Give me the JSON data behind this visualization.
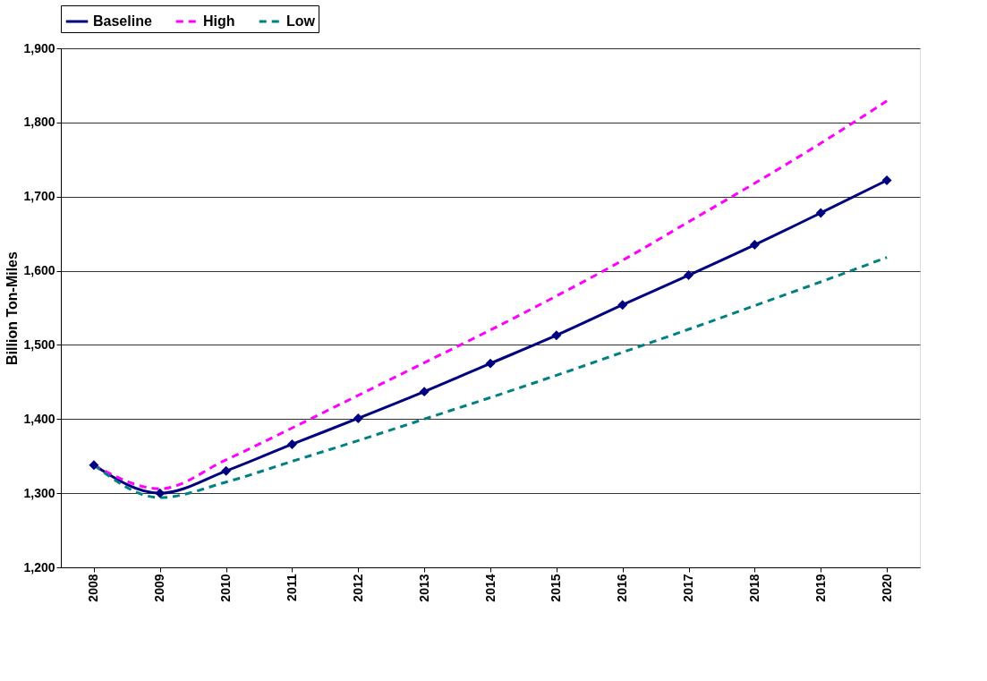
{
  "chart_data": {
    "type": "line",
    "ylabel": "Billion Ton-Miles",
    "categories": [
      "2008",
      "2009",
      "2010",
      "2011",
      "2012",
      "2013",
      "2014",
      "2015",
      "2016",
      "2017",
      "2018",
      "2019",
      "2020"
    ],
    "series": [
      {
        "name": "Baseline",
        "color": "#000080",
        "marker": "diamond",
        "line_style": "solid",
        "values": [
          1338,
          1300,
          1330,
          1366,
          1401,
          1437,
          1475,
          1513,
          1554,
          1594,
          1635,
          1678,
          1722
        ]
      },
      {
        "name": "High",
        "color": "#ff00ff",
        "marker": "none",
        "line_style": "dashed",
        "values": [
          1338,
          1306,
          1345,
          1388,
          1432,
          1476,
          1520,
          1566,
          1614,
          1666,
          1718,
          1772,
          1829
        ]
      },
      {
        "name": "Low",
        "color": "#008080",
        "marker": "none",
        "line_style": "dashed",
        "values": [
          1338,
          1294,
          1315,
          1343,
          1371,
          1400,
          1429,
          1459,
          1490,
          1521,
          1553,
          1585,
          1618
        ]
      }
    ],
    "ylim": [
      1200,
      1900
    ],
    "yticks": [
      {
        "value": 1200,
        "label": "1,200"
      },
      {
        "value": 1300,
        "label": "1,300"
      },
      {
        "value": 1400,
        "label": "1,400"
      },
      {
        "value": 1500,
        "label": "1,500"
      },
      {
        "value": 1600,
        "label": "1,600"
      },
      {
        "value": 1700,
        "label": "1,700"
      },
      {
        "value": 1800,
        "label": "1,800"
      },
      {
        "value": 1900,
        "label": "1,900"
      }
    ],
    "grid": "y",
    "legend": "top"
  }
}
